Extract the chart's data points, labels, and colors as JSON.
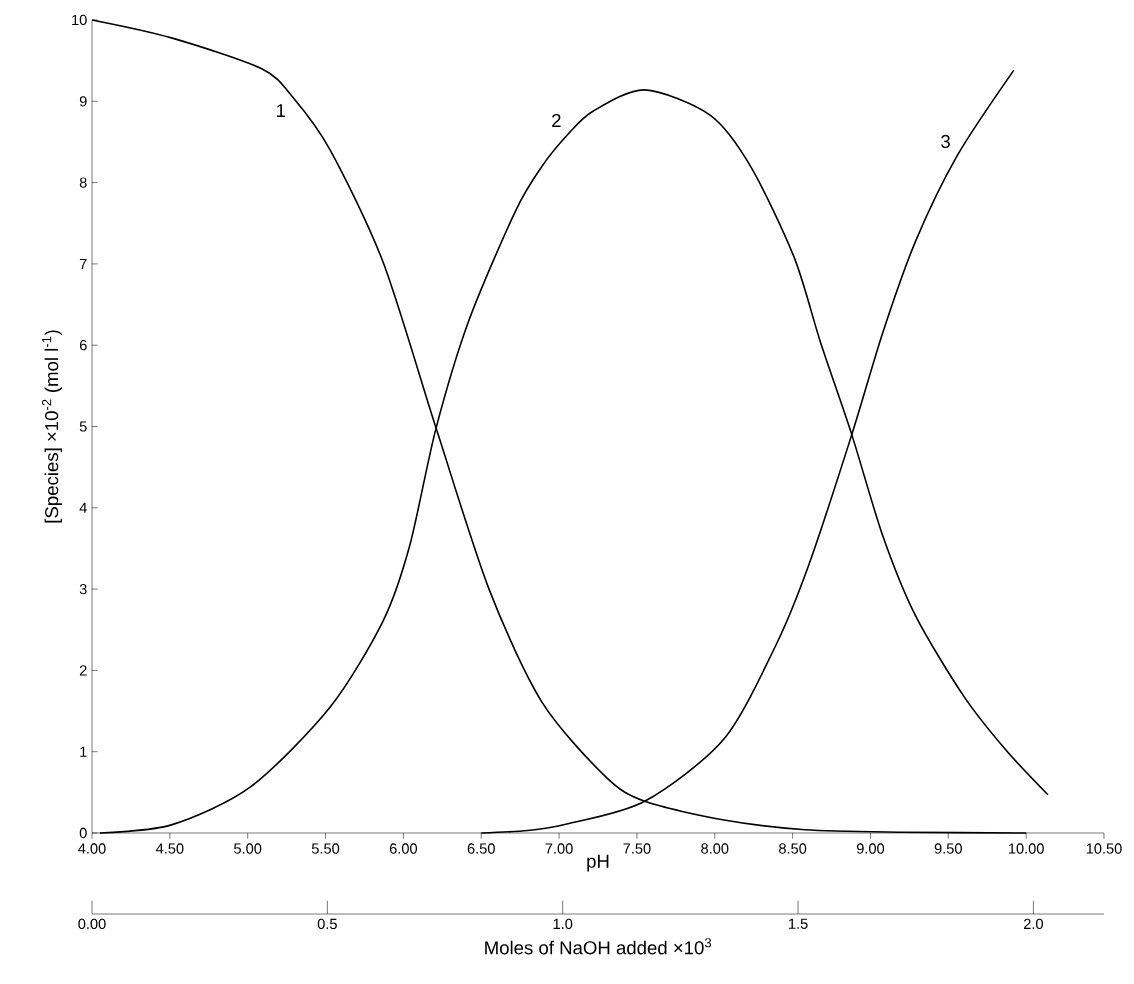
{
  "chart_data": {
    "type": "line",
    "xlabel": "pH",
    "ylabel": "[Species] ×10$^{-2}$ (mol l$^{-1}$)",
    "x2label": "Moles of NaOH added ×10$^{3}$",
    "xlim": [
      4.0,
      10.5
    ],
    "ylim": [
      0,
      10
    ],
    "xticks": [
      {
        "value": 4.0,
        "label": "4.00"
      },
      {
        "value": 4.5,
        "label": "4.50"
      },
      {
        "value": 5.0,
        "label": "5.00"
      },
      {
        "value": 5.5,
        "label": "5.50"
      },
      {
        "value": 6.0,
        "label": "6.00"
      },
      {
        "value": 6.5,
        "label": "6.50"
      },
      {
        "value": 7.0,
        "label": "7.00"
      },
      {
        "value": 7.5,
        "label": "7.50"
      },
      {
        "value": 8.0,
        "label": "8.00"
      },
      {
        "value": 8.5,
        "label": "8.50"
      },
      {
        "value": 9.0,
        "label": "9.00"
      },
      {
        "value": 9.5,
        "label": "9.50"
      },
      {
        "value": 10.0,
        "label": "10.00"
      },
      {
        "value": 10.5,
        "label": "10.50"
      }
    ],
    "yticks": [
      0,
      1,
      2,
      3,
      4,
      5,
      6,
      7,
      8,
      9,
      10
    ],
    "x2lim": [
      0,
      2.15
    ],
    "x2ticks": [
      {
        "value": 0,
        "label": "0.00"
      },
      0.5,
      {
        "value": 1.0,
        "label": "1.0"
      },
      1.5,
      {
        "value": 2.0,
        "label": "2.0"
      }
    ],
    "line_style": "solid",
    "series": [
      {
        "color": "#000000",
        "x": [
          4.0,
          4.51,
          5.09,
          5.29,
          5.53,
          5.87,
          6.21,
          6.55,
          6.89,
          7.3,
          7.55,
          8.06,
          8.58,
          9.2,
          10.0
        ],
        "values": [
          10.0,
          9.78,
          9.4,
          9.05,
          8.4,
          7.02,
          4.98,
          3.0,
          1.61,
          0.69,
          0.39,
          0.16,
          0.04,
          0.01,
          0.0
        ]
      },
      {
        "color": "#000000",
        "x": [
          4.05,
          4.51,
          5.02,
          5.53,
          5.87,
          6.04,
          6.21,
          6.42,
          6.72,
          6.89,
          7.06,
          7.22,
          7.55,
          7.97,
          8.23,
          8.51,
          8.68,
          8.88,
          9.08,
          9.29,
          9.6,
          9.87,
          10.14
        ],
        "values": [
          0.0,
          0.1,
          0.57,
          1.55,
          2.61,
          3.53,
          4.98,
          6.3,
          7.65,
          8.2,
          8.6,
          8.88,
          9.14,
          8.83,
          8.2,
          7.08,
          6.03,
          4.9,
          3.65,
          2.67,
          1.68,
          1.02,
          0.47
        ]
      },
      {
        "color": "#000000",
        "x": [
          6.5,
          6.8,
          7.05,
          7.55,
          8.06,
          8.4,
          8.61,
          8.88,
          9.08,
          9.29,
          9.56,
          9.92
        ],
        "values": [
          0.0,
          0.03,
          0.11,
          0.39,
          1.16,
          2.34,
          3.33,
          4.9,
          6.16,
          7.28,
          8.34,
          9.38
        ]
      }
    ],
    "annotations": [
      {
        "text": "1",
        "x": 5.29,
        "y": 9.05
      },
      {
        "text": "2",
        "x": 7.06,
        "y": 8.6
      },
      {
        "text": "3",
        "x": 9.56,
        "y": 8.34
      }
    ]
  }
}
